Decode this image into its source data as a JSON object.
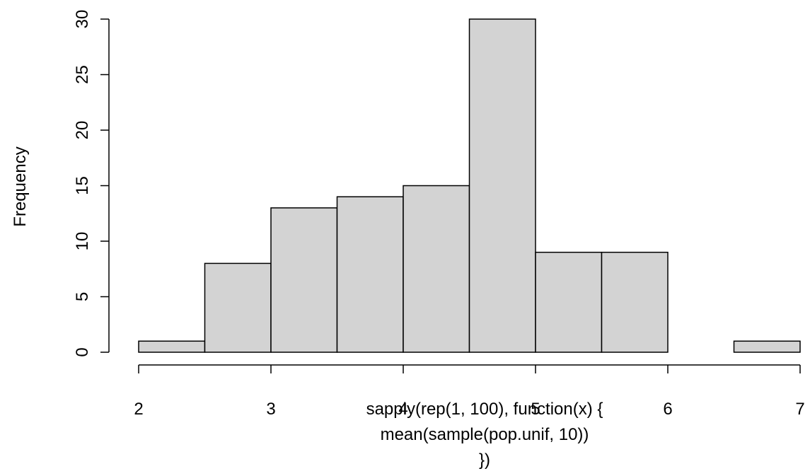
{
  "chart_data": {
    "type": "bar",
    "subtype": "histogram",
    "bins": [
      {
        "start": 2.0,
        "end": 2.5,
        "count": 1
      },
      {
        "start": 2.5,
        "end": 3.0,
        "count": 8
      },
      {
        "start": 3.0,
        "end": 3.5,
        "count": 13
      },
      {
        "start": 3.5,
        "end": 4.0,
        "count": 14
      },
      {
        "start": 4.0,
        "end": 4.5,
        "count": 15
      },
      {
        "start": 4.5,
        "end": 5.0,
        "count": 30
      },
      {
        "start": 5.0,
        "end": 5.5,
        "count": 9
      },
      {
        "start": 5.5,
        "end": 6.0,
        "count": 9
      },
      {
        "start": 6.0,
        "end": 6.5,
        "count": 0
      },
      {
        "start": 6.5,
        "end": 7.0,
        "count": 1
      }
    ],
    "xticks": [
      2,
      3,
      4,
      5,
      6,
      7
    ],
    "yticks": [
      0,
      5,
      10,
      15,
      20,
      25,
      30
    ],
    "xlim": [
      2,
      7
    ],
    "ylim": [
      0,
      30
    ],
    "xlabel_lines": [
      "sapply(rep(1, 100), function(x) {",
      "mean(sample(pop.unif, 10))",
      "})"
    ],
    "ylabel": "Frequency",
    "bar_fill": "#d3d3d3",
    "bar_stroke": "#000000",
    "grid": false
  }
}
